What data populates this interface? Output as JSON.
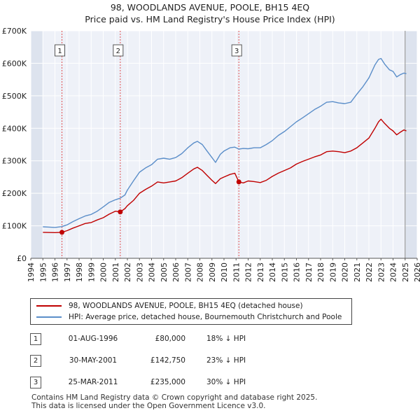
{
  "header": {
    "title": "98, WOODLANDS AVENUE, POOLE, BH15 4EQ",
    "subtitle": "Price paid vs. HM Land Registry's House Price Index (HPI)"
  },
  "chart_data": {
    "type": "line",
    "xlim": [
      1994,
      2026
    ],
    "ylim": [
      0,
      700000
    ],
    "y_ticks": [
      0,
      100000,
      200000,
      300000,
      400000,
      500000,
      600000,
      700000
    ],
    "y_tick_labels": [
      "£0",
      "£100K",
      "£200K",
      "£300K",
      "£400K",
      "£500K",
      "£600K",
      "£700K"
    ],
    "x_ticks": [
      1994,
      1995,
      1996,
      1997,
      1998,
      1999,
      2000,
      2001,
      2002,
      2003,
      2004,
      2005,
      2006,
      2007,
      2008,
      2009,
      2010,
      2011,
      2012,
      2013,
      2014,
      2015,
      2016,
      2017,
      2018,
      2019,
      2020,
      2021,
      2022,
      2023,
      2024,
      2025,
      2026
    ],
    "x_tick_labels": [
      "1994",
      "1995",
      "1996",
      "1997",
      "1998",
      "1999",
      "2000",
      "2001",
      "2002",
      "2003",
      "2004",
      "2005",
      "2006",
      "2007",
      "2008",
      "2009",
      "2010",
      "2011",
      "2012",
      "2013",
      "2014",
      "2015",
      "2016",
      "2017",
      "2018",
      "2019",
      "2020",
      "2021",
      "2022",
      "2023",
      "2024",
      "2025",
      "2026"
    ],
    "shaded_regions": [
      [
        1994,
        1995
      ],
      [
        2025.0,
        2026
      ]
    ],
    "grid": true,
    "series": [
      {
        "name": "98, WOODLANDS AVENUE, POOLE, BH15 4EQ (detached house)",
        "color": "#c00000",
        "points": [
          [
            1995.0,
            80000
          ],
          [
            1996.0,
            79000
          ],
          [
            1996.58,
            80000
          ],
          [
            1997.0,
            85000
          ],
          [
            1997.5,
            93000
          ],
          [
            1998.0,
            100000
          ],
          [
            1998.5,
            107000
          ],
          [
            1999.0,
            110000
          ],
          [
            1999.5,
            118000
          ],
          [
            2000.0,
            125000
          ],
          [
            2000.5,
            136000
          ],
          [
            2001.0,
            145000
          ],
          [
            2001.41,
            142750
          ],
          [
            2001.8,
            153000
          ],
          [
            2002.0,
            162000
          ],
          [
            2002.5,
            178000
          ],
          [
            2003.0,
            200000
          ],
          [
            2003.5,
            212000
          ],
          [
            2004.0,
            222000
          ],
          [
            2004.5,
            235000
          ],
          [
            2005.0,
            232000
          ],
          [
            2005.5,
            235000
          ],
          [
            2006.0,
            238000
          ],
          [
            2006.5,
            248000
          ],
          [
            2007.0,
            262000
          ],
          [
            2007.5,
            275000
          ],
          [
            2007.8,
            280000
          ],
          [
            2008.2,
            270000
          ],
          [
            2008.6,
            255000
          ],
          [
            2009.0,
            240000
          ],
          [
            2009.3,
            230000
          ],
          [
            2009.7,
            245000
          ],
          [
            2010.0,
            250000
          ],
          [
            2010.5,
            258000
          ],
          [
            2010.9,
            262000
          ],
          [
            2011.23,
            235000
          ],
          [
            2011.6,
            232000
          ],
          [
            2012.0,
            238000
          ],
          [
            2012.5,
            236000
          ],
          [
            2013.0,
            233000
          ],
          [
            2013.5,
            240000
          ],
          [
            2014.0,
            252000
          ],
          [
            2014.5,
            262000
          ],
          [
            2015.0,
            270000
          ],
          [
            2015.5,
            278000
          ],
          [
            2016.0,
            290000
          ],
          [
            2016.5,
            298000
          ],
          [
            2017.0,
            305000
          ],
          [
            2017.5,
            312000
          ],
          [
            2018.0,
            318000
          ],
          [
            2018.5,
            328000
          ],
          [
            2019.0,
            330000
          ],
          [
            2019.5,
            328000
          ],
          [
            2020.0,
            325000
          ],
          [
            2020.5,
            330000
          ],
          [
            2021.0,
            340000
          ],
          [
            2021.5,
            355000
          ],
          [
            2022.0,
            370000
          ],
          [
            2022.5,
            400000
          ],
          [
            2022.8,
            420000
          ],
          [
            2023.0,
            428000
          ],
          [
            2023.3,
            415000
          ],
          [
            2023.7,
            400000
          ],
          [
            2024.0,
            392000
          ],
          [
            2024.3,
            380000
          ],
          [
            2024.6,
            388000
          ],
          [
            2024.9,
            395000
          ],
          [
            2025.1,
            392000
          ]
        ]
      },
      {
        "name": "HPI: Average price, detached house, Bournemouth Christchurch and Poole",
        "color": "#5b8ec9",
        "points": [
          [
            1995.0,
            97000
          ],
          [
            1995.5,
            96000
          ],
          [
            1996.0,
            95000
          ],
          [
            1996.58,
            97500
          ],
          [
            1997.0,
            103000
          ],
          [
            1997.5,
            113000
          ],
          [
            1998.0,
            122000
          ],
          [
            1998.5,
            130000
          ],
          [
            1999.0,
            135000
          ],
          [
            1999.5,
            145000
          ],
          [
            2000.0,
            158000
          ],
          [
            2000.5,
            172000
          ],
          [
            2001.0,
            180000
          ],
          [
            2001.41,
            185000
          ],
          [
            2001.8,
            195000
          ],
          [
            2002.0,
            210000
          ],
          [
            2002.5,
            238000
          ],
          [
            2003.0,
            265000
          ],
          [
            2003.5,
            278000
          ],
          [
            2004.0,
            288000
          ],
          [
            2004.5,
            305000
          ],
          [
            2005.0,
            308000
          ],
          [
            2005.5,
            305000
          ],
          [
            2006.0,
            310000
          ],
          [
            2006.5,
            322000
          ],
          [
            2007.0,
            340000
          ],
          [
            2007.5,
            355000
          ],
          [
            2007.8,
            360000
          ],
          [
            2008.2,
            350000
          ],
          [
            2008.6,
            330000
          ],
          [
            2009.0,
            310000
          ],
          [
            2009.3,
            295000
          ],
          [
            2009.7,
            320000
          ],
          [
            2010.0,
            330000
          ],
          [
            2010.5,
            340000
          ],
          [
            2010.9,
            342000
          ],
          [
            2011.23,
            336000
          ],
          [
            2011.6,
            338000
          ],
          [
            2012.0,
            337000
          ],
          [
            2012.5,
            340000
          ],
          [
            2013.0,
            340000
          ],
          [
            2013.5,
            350000
          ],
          [
            2014.0,
            362000
          ],
          [
            2014.5,
            378000
          ],
          [
            2015.0,
            390000
          ],
          [
            2015.5,
            405000
          ],
          [
            2016.0,
            420000
          ],
          [
            2016.5,
            432000
          ],
          [
            2017.0,
            445000
          ],
          [
            2017.5,
            458000
          ],
          [
            2018.0,
            468000
          ],
          [
            2018.5,
            480000
          ],
          [
            2019.0,
            482000
          ],
          [
            2019.5,
            478000
          ],
          [
            2020.0,
            476000
          ],
          [
            2020.5,
            480000
          ],
          [
            2021.0,
            505000
          ],
          [
            2021.5,
            528000
          ],
          [
            2022.0,
            555000
          ],
          [
            2022.5,
            595000
          ],
          [
            2022.8,
            612000
          ],
          [
            2023.0,
            615000
          ],
          [
            2023.3,
            598000
          ],
          [
            2023.7,
            580000
          ],
          [
            2024.0,
            575000
          ],
          [
            2024.3,
            558000
          ],
          [
            2024.6,
            565000
          ],
          [
            2024.9,
            570000
          ],
          [
            2025.1,
            568000
          ]
        ]
      }
    ],
    "transactions": [
      {
        "label": "1",
        "year": 1996.58,
        "price": 80000
      },
      {
        "label": "2",
        "year": 2001.41,
        "price": 142750
      },
      {
        "label": "3",
        "year": 2011.23,
        "price": 235000
      }
    ]
  },
  "legend": {
    "property_label": "98, WOODLANDS AVENUE, POOLE, BH15 4EQ (detached house)",
    "hpi_label": "HPI: Average price, detached house, Bournemouth Christchurch and Poole"
  },
  "table": {
    "rows": [
      {
        "num": "1",
        "date": "01-AUG-1996",
        "price": "£80,000",
        "hpi": "18% ↓ HPI"
      },
      {
        "num": "2",
        "date": "30-MAY-2001",
        "price": "£142,750",
        "hpi": "23% ↓ HPI"
      },
      {
        "num": "3",
        "date": "25-MAR-2011",
        "price": "£235,000",
        "hpi": "30% ↓ HPI"
      }
    ]
  },
  "footer": {
    "line1": "Contains HM Land Registry data © Crown copyright and database right 2025.",
    "line2": "This data is licensed under the Open Government Licence v3.0."
  }
}
